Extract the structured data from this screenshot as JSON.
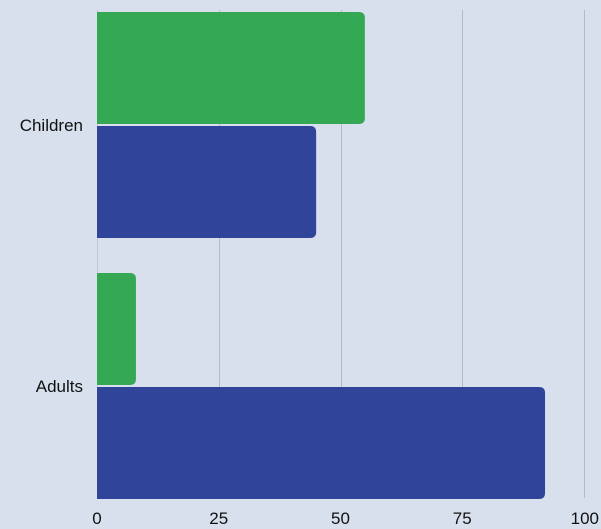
{
  "chart_data": {
    "type": "bar",
    "orientation": "horizontal",
    "categories": [
      "Children",
      "Adults"
    ],
    "series": [
      {
        "values": [
          55,
          8
        ],
        "color": "#35a853"
      },
      {
        "values": [
          45,
          92
        ],
        "color": "#304599"
      }
    ],
    "xlim": [
      0,
      100
    ],
    "xticks": [
      0,
      25,
      50,
      75,
      100
    ],
    "grid": true,
    "legend": "none"
  }
}
